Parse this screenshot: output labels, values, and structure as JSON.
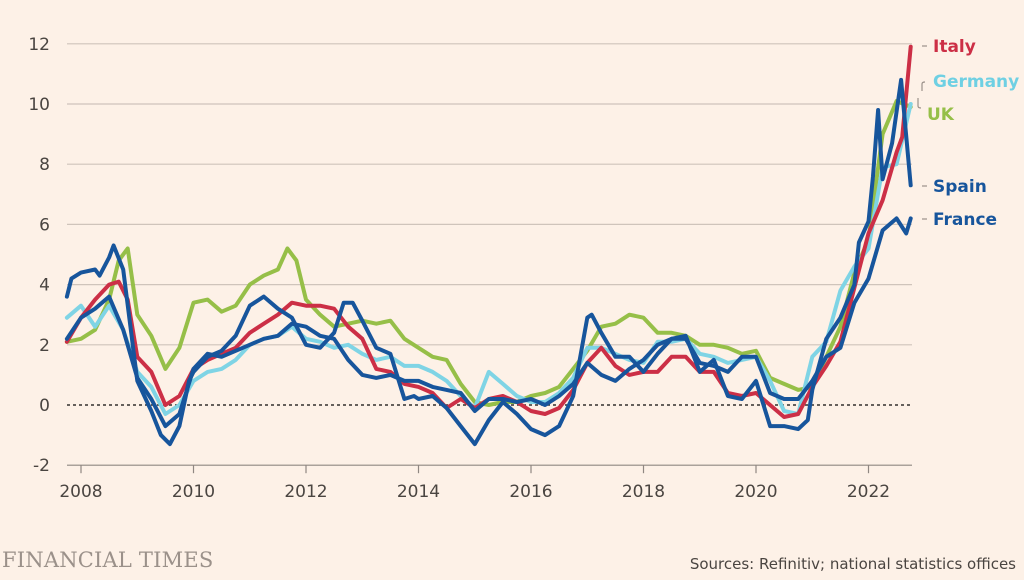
{
  "branding": {
    "publisher": "FINANCIAL TIMES"
  },
  "footer": {
    "source": "Sources: Refinitiv; national statistics offices"
  },
  "chart_data": {
    "type": "line",
    "title": "",
    "xlabel": "",
    "ylabel": "",
    "xlim": [
      2007.75,
      2022.75
    ],
    "ylim": [
      -2,
      12
    ],
    "yticks": [
      12,
      10,
      8,
      6,
      4,
      2,
      0,
      -2
    ],
    "xticks": [
      2008,
      2010,
      2012,
      2014,
      2016,
      2018,
      2020,
      2022
    ],
    "grid": true,
    "zero_line": "dotted",
    "legend": "right-end labels",
    "series": [
      {
        "name": "UK",
        "color": "#96bf48",
        "end_label_value": 10.0,
        "x": [
          2007.75,
          2008.0,
          2008.25,
          2008.5,
          2008.67,
          2008.83,
          2009.0,
          2009.25,
          2009.5,
          2009.75,
          2010.0,
          2010.25,
          2010.5,
          2010.75,
          2011.0,
          2011.25,
          2011.5,
          2011.67,
          2011.83,
          2012.0,
          2012.25,
          2012.5,
          2012.75,
          2013.0,
          2013.25,
          2013.5,
          2013.75,
          2014.0,
          2014.25,
          2014.5,
          2014.75,
          2015.0,
          2015.25,
          2015.5,
          2015.75,
          2016.0,
          2016.25,
          2016.5,
          2016.75,
          2017.0,
          2017.25,
          2017.5,
          2017.75,
          2018.0,
          2018.25,
          2018.5,
          2018.75,
          2019.0,
          2019.25,
          2019.5,
          2019.75,
          2020.0,
          2020.25,
          2020.5,
          2020.75,
          2021.0,
          2021.25,
          2021.5,
          2021.75,
          2022.0,
          2022.25,
          2022.5,
          2022.75
        ],
        "y": [
          2.1,
          2.2,
          2.5,
          3.5,
          4.8,
          5.2,
          3.0,
          2.3,
          1.2,
          1.9,
          3.4,
          3.5,
          3.1,
          3.3,
          4.0,
          4.3,
          4.5,
          5.2,
          4.8,
          3.5,
          3.0,
          2.6,
          2.7,
          2.8,
          2.7,
          2.8,
          2.2,
          1.9,
          1.6,
          1.5,
          0.7,
          0.1,
          0.0,
          0.1,
          0.1,
          0.3,
          0.4,
          0.6,
          1.2,
          1.8,
          2.6,
          2.7,
          3.0,
          2.9,
          2.4,
          2.4,
          2.3,
          2.0,
          2.0,
          1.9,
          1.7,
          1.8,
          0.9,
          0.7,
          0.5,
          0.6,
          1.6,
          2.6,
          4.4,
          5.5,
          9.0,
          10.1,
          9.9
        ]
      },
      {
        "name": "Germany",
        "color": "#7fd4e5",
        "end_label_value": 10.0,
        "x": [
          2007.75,
          2008.0,
          2008.25,
          2008.5,
          2008.75,
          2009.0,
          2009.25,
          2009.5,
          2009.75,
          2010.0,
          2010.25,
          2010.5,
          2010.75,
          2011.0,
          2011.25,
          2011.5,
          2011.75,
          2012.0,
          2012.25,
          2012.5,
          2012.75,
          2013.0,
          2013.25,
          2013.5,
          2013.75,
          2014.0,
          2014.25,
          2014.5,
          2014.75,
          2015.0,
          2015.25,
          2015.5,
          2015.75,
          2016.0,
          2016.25,
          2016.5,
          2016.75,
          2017.0,
          2017.25,
          2017.5,
          2017.75,
          2018.0,
          2018.25,
          2018.5,
          2018.75,
          2019.0,
          2019.25,
          2019.5,
          2019.75,
          2020.0,
          2020.25,
          2020.5,
          2020.75,
          2021.0,
          2021.25,
          2021.5,
          2021.75,
          2022.0,
          2022.25,
          2022.5,
          2022.75
        ],
        "y": [
          2.9,
          3.3,
          2.6,
          3.3,
          2.5,
          1.1,
          0.6,
          -0.3,
          0.0,
          0.8,
          1.1,
          1.2,
          1.5,
          2.0,
          2.2,
          2.3,
          2.6,
          2.2,
          2.1,
          1.9,
          2.0,
          1.7,
          1.5,
          1.6,
          1.3,
          1.3,
          1.1,
          0.8,
          0.3,
          -0.1,
          1.1,
          0.7,
          0.3,
          0.1,
          0.1,
          0.4,
          0.9,
          1.9,
          1.9,
          1.7,
          1.5,
          1.4,
          2.1,
          2.1,
          2.2,
          1.7,
          1.6,
          1.4,
          1.5,
          1.6,
          0.8,
          -0.2,
          -0.3,
          1.6,
          2.1,
          3.8,
          4.6,
          5.2,
          7.9,
          8.0,
          10.0
        ]
      },
      {
        "name": "Italy",
        "color": "#cc2f46",
        "end_label_value": 11.9,
        "x": [
          2007.75,
          2008.0,
          2008.25,
          2008.5,
          2008.67,
          2008.83,
          2009.0,
          2009.25,
          2009.5,
          2009.75,
          2010.0,
          2010.25,
          2010.5,
          2010.75,
          2011.0,
          2011.25,
          2011.5,
          2011.75,
          2012.0,
          2012.25,
          2012.5,
          2012.75,
          2013.0,
          2013.25,
          2013.5,
          2013.75,
          2014.0,
          2014.25,
          2014.5,
          2014.75,
          2015.0,
          2015.25,
          2015.5,
          2015.75,
          2016.0,
          2016.25,
          2016.5,
          2016.75,
          2017.0,
          2017.25,
          2017.5,
          2017.75,
          2018.0,
          2018.25,
          2018.5,
          2018.75,
          2019.0,
          2019.25,
          2019.5,
          2019.75,
          2020.0,
          2020.25,
          2020.5,
          2020.75,
          2021.0,
          2021.25,
          2021.5,
          2021.75,
          2022.0,
          2022.25,
          2022.5,
          2022.6,
          2022.75
        ],
        "y": [
          2.1,
          2.9,
          3.5,
          4.0,
          4.1,
          3.5,
          1.6,
          1.1,
          0.0,
          0.3,
          1.2,
          1.5,
          1.7,
          1.9,
          2.4,
          2.7,
          3.0,
          3.4,
          3.3,
          3.3,
          3.2,
          2.6,
          2.2,
          1.2,
          1.1,
          0.7,
          0.6,
          0.4,
          -0.1,
          0.2,
          -0.1,
          0.2,
          0.3,
          0.1,
          -0.2,
          -0.3,
          -0.1,
          0.5,
          1.4,
          1.9,
          1.3,
          1.0,
          1.1,
          1.1,
          1.6,
          1.6,
          1.1,
          1.1,
          0.4,
          0.3,
          0.4,
          0.0,
          -0.4,
          -0.3,
          0.6,
          1.3,
          2.1,
          3.9,
          5.7,
          6.8,
          8.4,
          8.9,
          11.9
        ]
      },
      {
        "name": "Spain",
        "color": "#17559c",
        "end_label_value": 7.3,
        "x": [
          2007.75,
          2007.83,
          2008.0,
          2008.25,
          2008.33,
          2008.5,
          2008.58,
          2008.75,
          2009.0,
          2009.25,
          2009.42,
          2009.58,
          2009.75,
          2009.92,
          2010.0,
          2010.25,
          2010.5,
          2010.75,
          2011.0,
          2011.25,
          2011.5,
          2011.75,
          2012.0,
          2012.25,
          2012.5,
          2012.67,
          2012.83,
          2013.0,
          2013.25,
          2013.5,
          2013.75,
          2013.92,
          2014.0,
          2014.25,
          2014.5,
          2014.75,
          2015.0,
          2015.25,
          2015.5,
          2015.75,
          2016.0,
          2016.25,
          2016.5,
          2016.75,
          2017.0,
          2017.08,
          2017.25,
          2017.5,
          2017.75,
          2018.0,
          2018.25,
          2018.5,
          2018.75,
          2019.0,
          2019.25,
          2019.5,
          2019.75,
          2020.0,
          2020.25,
          2020.5,
          2020.75,
          2020.92,
          2021.0,
          2021.25,
          2021.5,
          2021.75,
          2021.83,
          2022.0,
          2022.08,
          2022.17,
          2022.25,
          2022.42,
          2022.58,
          2022.75
        ],
        "y": [
          3.6,
          4.2,
          4.4,
          4.5,
          4.3,
          4.9,
          5.3,
          4.5,
          0.8,
          -0.2,
          -1.0,
          -1.3,
          -0.7,
          0.8,
          1.1,
          1.6,
          1.8,
          2.3,
          3.3,
          3.6,
          3.2,
          2.9,
          2.0,
          1.9,
          2.4,
          3.4,
          3.4,
          2.8,
          1.9,
          1.7,
          0.2,
          0.3,
          0.2,
          0.3,
          -0.1,
          -0.7,
          -1.3,
          -0.5,
          0.1,
          -0.3,
          -0.8,
          -1.0,
          -0.7,
          0.3,
          2.9,
          3.0,
          2.4,
          1.6,
          1.6,
          1.1,
          1.7,
          2.2,
          2.3,
          1.1,
          1.5,
          0.3,
          0.2,
          0.8,
          -0.7,
          -0.7,
          -0.8,
          -0.5,
          0.5,
          2.2,
          2.9,
          4.0,
          5.4,
          6.1,
          7.6,
          9.8,
          7.5,
          8.7,
          10.8,
          7.3
        ]
      },
      {
        "name": "France",
        "color": "#17559c",
        "end_label_value": 6.2,
        "x": [
          2007.75,
          2008.0,
          2008.25,
          2008.5,
          2008.75,
          2009.0,
          2009.25,
          2009.5,
          2009.75,
          2010.0,
          2010.25,
          2010.5,
          2010.75,
          2011.0,
          2011.25,
          2011.5,
          2011.75,
          2012.0,
          2012.25,
          2012.5,
          2012.75,
          2013.0,
          2013.25,
          2013.5,
          2013.75,
          2014.0,
          2014.25,
          2014.5,
          2014.75,
          2015.0,
          2015.25,
          2015.5,
          2015.75,
          2016.0,
          2016.25,
          2016.5,
          2016.75,
          2017.0,
          2017.25,
          2017.5,
          2017.75,
          2018.0,
          2018.25,
          2018.5,
          2018.75,
          2019.0,
          2019.25,
          2019.5,
          2019.75,
          2020.0,
          2020.25,
          2020.5,
          2020.75,
          2021.0,
          2021.25,
          2021.5,
          2021.75,
          2022.0,
          2022.25,
          2022.5,
          2022.67,
          2022.75
        ],
        "y": [
          2.2,
          2.9,
          3.2,
          3.6,
          2.5,
          0.9,
          0.2,
          -0.7,
          -0.3,
          1.2,
          1.7,
          1.6,
          1.8,
          2.0,
          2.2,
          2.3,
          2.7,
          2.6,
          2.3,
          2.2,
          1.5,
          1.0,
          0.9,
          1.0,
          0.8,
          0.8,
          0.6,
          0.5,
          0.4,
          -0.2,
          0.2,
          0.2,
          0.1,
          0.2,
          0.0,
          0.3,
          0.7,
          1.4,
          1.0,
          0.8,
          1.2,
          1.5,
          2.0,
          2.2,
          2.2,
          1.4,
          1.3,
          1.1,
          1.6,
          1.6,
          0.4,
          0.2,
          0.2,
          0.8,
          1.6,
          1.9,
          3.4,
          4.2,
          5.8,
          6.2,
          5.7,
          6.2
        ]
      }
    ]
  },
  "legend_labels": [
    {
      "name": "Italy",
      "color": "#cc2f46"
    },
    {
      "name": "Germany",
      "color": "#6fd0e3"
    },
    {
      "name": "UK",
      "color": "#96bf48"
    },
    {
      "name": "Spain",
      "color": "#17559c"
    },
    {
      "name": "France",
      "color": "#17559c"
    }
  ]
}
